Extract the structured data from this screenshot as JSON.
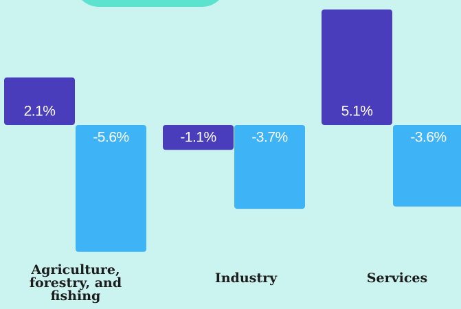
{
  "colors": {
    "background": "#cbf3ef",
    "ribbon": "#5be3cf",
    "series_a": "#4a3dbb",
    "series_b": "#3eb3f6",
    "label_text": "#ffffff",
    "category_text": "#1c1c1c"
  },
  "chart_data": {
    "type": "bar",
    "categories": [
      "Agriculture,\nforestry, and\nfishing",
      "Industry",
      "Services"
    ],
    "series": [
      {
        "values": [
          2.1,
          -1.1,
          5.1
        ],
        "labels": [
          "2.1%",
          "-1.1%",
          "5.1%"
        ],
        "color": "#4a3dbb"
      },
      {
        "values": [
          -5.6,
          -3.7,
          -3.6
        ],
        "labels": [
          "-5.6%",
          "-3.7%",
          "-3.6%"
        ],
        "color": "#3eb3f6"
      }
    ],
    "title": "",
    "xlabel": "",
    "ylabel": "",
    "ylim": [
      -6,
      6
    ],
    "grid": false,
    "legend": "none"
  }
}
